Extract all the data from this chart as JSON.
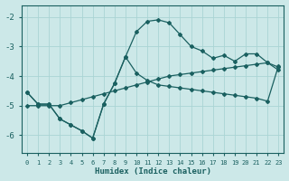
{
  "xlabel": "Humidex (Indice chaleur)",
  "background_color": "#cce8e8",
  "line_color": "#1a6060",
  "grid_color": "#aad4d4",
  "xlim": [
    -0.5,
    23.5
  ],
  "ylim": [
    -6.6,
    -1.6
  ],
  "yticks": [
    -6,
    -5,
    -4,
    -3,
    -2
  ],
  "xticks": [
    0,
    1,
    2,
    3,
    4,
    5,
    6,
    7,
    8,
    9,
    10,
    11,
    12,
    13,
    14,
    15,
    16,
    17,
    18,
    19,
    20,
    21,
    22,
    23
  ],
  "series1_x": [
    0,
    1,
    2,
    3,
    4,
    5,
    6,
    7,
    8,
    9,
    10,
    11,
    12,
    13,
    14,
    15,
    16,
    17,
    18,
    19,
    20,
    21,
    22,
    23
  ],
  "series1_y": [
    -4.55,
    -4.95,
    -4.95,
    -5.45,
    -5.65,
    -5.85,
    -6.1,
    -4.95,
    -4.25,
    -3.35,
    -3.9,
    -4.15,
    -4.3,
    -4.35,
    -4.4,
    -4.45,
    -4.5,
    -4.55,
    -4.6,
    -4.65,
    -4.7,
    -4.75,
    -4.85,
    -3.65
  ],
  "series2_x": [
    0,
    1,
    2,
    3,
    4,
    5,
    6,
    7,
    8,
    9,
    10,
    11,
    12,
    13,
    14,
    15,
    16,
    17,
    18,
    19,
    20,
    21,
    22,
    23
  ],
  "series2_y": [
    -5.0,
    -5.0,
    -5.0,
    -5.0,
    -4.9,
    -4.8,
    -4.7,
    -4.6,
    -4.5,
    -4.4,
    -4.3,
    -4.2,
    -4.1,
    -4.0,
    -3.95,
    -3.9,
    -3.85,
    -3.8,
    -3.75,
    -3.7,
    -3.65,
    -3.6,
    -3.55,
    -3.7
  ],
  "series3_x": [
    0,
    1,
    2,
    3,
    4,
    5,
    6,
    7,
    8,
    9,
    10,
    11,
    12,
    13,
    14,
    15,
    16,
    17,
    18,
    19,
    20,
    21,
    22,
    23
  ],
  "series3_y": [
    -4.55,
    -4.95,
    -4.95,
    -5.45,
    -5.65,
    -5.85,
    -6.1,
    -4.95,
    -4.25,
    -3.35,
    -2.5,
    -2.15,
    -2.1,
    -2.2,
    -2.6,
    -3.0,
    -3.15,
    -3.4,
    -3.3,
    -3.5,
    -3.25,
    -3.25,
    -3.55,
    -3.8
  ]
}
